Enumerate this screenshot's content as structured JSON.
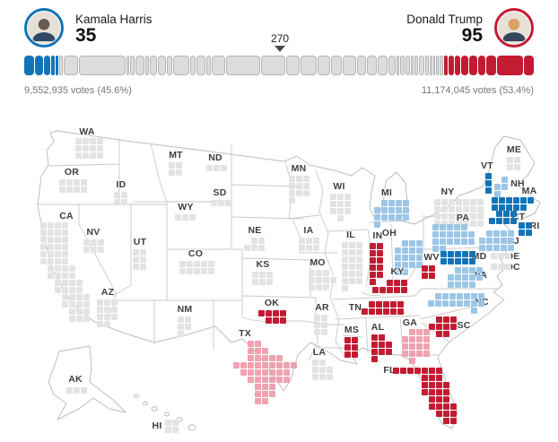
{
  "header": {
    "harris": {
      "name": "Kamala Harris",
      "ev": "35"
    },
    "trump": {
      "name": "Donald Trump",
      "ev": "95"
    },
    "marker": "270",
    "harris_votes": "9,552,935 votes (45.6%)",
    "trump_votes": "11,174,045 votes (53.4%)"
  },
  "colors": {
    "dem": "#1274b8",
    "dem_lean": "#9cc6e8",
    "gop": "#c21b32",
    "gop_lean": "#efa2b0",
    "none": "#e3e3e3",
    "bar_none_fill": "#dcdcdc",
    "bar_none_border": "#b5b5b5",
    "harris_ring": "#1274b8",
    "trump_ring": "#c21b32",
    "map_outline": "#c2c2c2"
  },
  "chart_data": {
    "type": "cartogram+bar",
    "total_electoral_votes": 538,
    "ev_to_win": 270,
    "candidates": [
      {
        "name": "Kamala Harris",
        "party": "dem",
        "electoral_votes": 35,
        "popular_votes": "9,552,935",
        "popular_pct": 45.6
      },
      {
        "name": "Donald Trump",
        "party": "gop",
        "electoral_votes": 95,
        "popular_votes": "11,174,045",
        "popular_pct": 53.4
      }
    ],
    "bar_segments": [
      {
        "state": "MA",
        "ev": 11,
        "party": "dem"
      },
      {
        "state": "MD",
        "ev": 10,
        "party": "dem"
      },
      {
        "state": "CT",
        "ev": 7,
        "party": "dem"
      },
      {
        "state": "RI",
        "ev": 4,
        "party": "dem"
      },
      {
        "state": "VT",
        "ev": 3,
        "party": "dem"
      },
      {
        "state": "NH",
        "ev": 4,
        "party": "none"
      },
      {
        "state": "OH",
        "ev": 17,
        "party": "none"
      },
      {
        "state": "CA",
        "ev": 54,
        "party": "none"
      },
      {
        "state": "ND",
        "ev": 3,
        "party": "none"
      },
      {
        "state": "IA",
        "ev": 6,
        "party": "none"
      },
      {
        "state": "WI",
        "ev": 10,
        "party": "none"
      },
      {
        "state": "ID",
        "ev": 4,
        "party": "none"
      },
      {
        "state": "OR",
        "ev": 8,
        "party": "none"
      },
      {
        "state": "MN",
        "ev": 10,
        "party": "none"
      },
      {
        "state": "KS",
        "ev": 6,
        "party": "none"
      },
      {
        "state": "IL",
        "ev": 19,
        "party": "none"
      },
      {
        "state": "NV",
        "ev": 6,
        "party": "none"
      },
      {
        "state": "MO",
        "ev": 10,
        "party": "none"
      },
      {
        "state": "NE",
        "ev": 5,
        "party": "none"
      },
      {
        "state": "NC",
        "ev": 16,
        "party": "none"
      },
      {
        "state": "TX",
        "ev": 40,
        "party": "none"
      },
      {
        "state": "NY",
        "ev": 28,
        "party": "none"
      },
      {
        "state": "MI",
        "ev": 15,
        "party": "none"
      },
      {
        "state": "PA",
        "ev": 19,
        "party": "none"
      },
      {
        "state": "NJ",
        "ev": 14,
        "party": "none"
      },
      {
        "state": "VA",
        "ev": 13,
        "party": "none"
      },
      {
        "state": "GA",
        "ev": 16,
        "party": "none"
      },
      {
        "state": "CO",
        "ev": 10,
        "party": "none"
      },
      {
        "state": "AZ",
        "ev": 11,
        "party": "none"
      },
      {
        "state": "WA",
        "ev": 12,
        "party": "none"
      },
      {
        "state": "LA",
        "ev": 8,
        "party": "none"
      },
      {
        "state": "SD",
        "ev": 3,
        "party": "none"
      },
      {
        "state": "NM",
        "ev": 5,
        "party": "none"
      },
      {
        "state": "UT",
        "ev": 6,
        "party": "none"
      },
      {
        "state": "AK",
        "ev": 3,
        "party": "none"
      },
      {
        "state": "ME",
        "ev": 4,
        "party": "none"
      },
      {
        "state": "AR",
        "ev": 6,
        "party": "none"
      },
      {
        "state": "HI",
        "ev": 4,
        "party": "none"
      },
      {
        "state": "WY",
        "ev": 3,
        "party": "none"
      },
      {
        "state": "DE",
        "ev": 3,
        "party": "none"
      },
      {
        "state": "DC",
        "ev": 3,
        "party": "none"
      },
      {
        "state": "MT",
        "ev": 4,
        "party": "none"
      },
      {
        "state": "WV",
        "ev": 4,
        "party": "gop"
      },
      {
        "state": "MS",
        "ev": 6,
        "party": "gop"
      },
      {
        "state": "OK",
        "ev": 7,
        "party": "gop"
      },
      {
        "state": "KY",
        "ev": 8,
        "party": "gop"
      },
      {
        "state": "AL",
        "ev": 9,
        "party": "gop"
      },
      {
        "state": "SC",
        "ev": 9,
        "party": "gop"
      },
      {
        "state": "IN",
        "ev": 11,
        "party": "gop"
      },
      {
        "state": "FL",
        "ev": 30,
        "party": "gop"
      },
      {
        "state": "TN",
        "ev": 11,
        "party": "gop"
      }
    ],
    "states": [
      {
        "abbr": "WA",
        "ev": 12,
        "status": "none",
        "label": [
          97,
          17
        ],
        "grid": [
          84,
          24
        ],
        "rows": [
          "####",
          "####",
          "####"
        ]
      },
      {
        "abbr": "OR",
        "ev": 8,
        "status": "none",
        "label": [
          80,
          62
        ],
        "grid": [
          66,
          70
        ],
        "rows": [
          "####",
          "####"
        ]
      },
      {
        "abbr": "CA",
        "ev": 54,
        "status": "none",
        "label": [
          74,
          111
        ],
        "grid": [
          45,
          118
        ],
        "rows": [
          "####...",
          "####...",
          "####...",
          "####...",
          "####...",
          "####...",
          ".####..",
          ".####..",
          "..####.",
          "..####.",
          "...####",
          "...####",
          "....###",
          "....###"
        ]
      },
      {
        "abbr": "NV",
        "ev": 6,
        "status": "none",
        "label": [
          104,
          129
        ],
        "grid": [
          93,
          137
        ],
        "rows": [
          "###",
          "###"
        ]
      },
      {
        "abbr": "ID",
        "ev": 4,
        "status": "none",
        "label": [
          135,
          76
        ],
        "grid": [
          127,
          84
        ],
        "rows": [
          "##",
          "##"
        ]
      },
      {
        "abbr": "MT",
        "ev": 4,
        "status": "none",
        "label": [
          196,
          43
        ],
        "grid": [
          188,
          51
        ],
        "rows": [
          "##",
          "##"
        ]
      },
      {
        "abbr": "WY",
        "ev": 3,
        "status": "none",
        "label": [
          207,
          101
        ],
        "grid": [
          195,
          109
        ],
        "rows": [
          "###"
        ]
      },
      {
        "abbr": "UT",
        "ev": 6,
        "status": "none",
        "label": [
          156,
          140
        ],
        "grid": [
          148,
          148
        ],
        "rows": [
          "##",
          "##",
          "##"
        ]
      },
      {
        "abbr": "CO",
        "ev": 10,
        "status": "none",
        "label": [
          218,
          153
        ],
        "grid": [
          200,
          161
        ],
        "rows": [
          "#####",
          "#####"
        ]
      },
      {
        "abbr": "AZ",
        "ev": 11,
        "status": "none",
        "label": [
          120,
          196
        ],
        "grid": [
          108,
          204
        ],
        "rows": [
          "###",
          "###",
          "###",
          "##."
        ]
      },
      {
        "abbr": "NM",
        "ev": 5,
        "status": "none",
        "label": [
          206,
          215
        ],
        "grid": [
          198,
          223
        ],
        "rows": [
          "##",
          "##",
          "#."
        ]
      },
      {
        "abbr": "ND",
        "ev": 3,
        "status": "none",
        "label": [
          240,
          46
        ],
        "grid": [
          230,
          54
        ],
        "rows": [
          "###"
        ]
      },
      {
        "abbr": "SD",
        "ev": 3,
        "status": "none",
        "label": [
          245,
          85
        ],
        "grid": [
          235,
          93
        ],
        "rows": [
          "###"
        ]
      },
      {
        "abbr": "NE",
        "ev": 5,
        "status": "none",
        "label": [
          284,
          127
        ],
        "grid": [
          272,
          135
        ],
        "rows": [
          ".##",
          "###"
        ]
      },
      {
        "abbr": "KS",
        "ev": 6,
        "status": "none",
        "label": [
          293,
          165
        ],
        "grid": [
          281,
          173
        ],
        "rows": [
          "###",
          "###"
        ]
      },
      {
        "abbr": "OK",
        "ev": 7,
        "status": "gop",
        "label": [
          303,
          208
        ],
        "grid": [
          288,
          216
        ],
        "rows": [
          "####",
          ".###"
        ]
      },
      {
        "abbr": "TX",
        "ev": 40,
        "status": "gop-lean",
        "label": [
          273,
          242
        ],
        "grid": [
          260,
          250
        ],
        "rows": [
          "..##.....",
          "..###....",
          "..#####..",
          "#########",
          ".#######.",
          "..######.",
          "...###...",
          "...###...",
          "...##...."
        ]
      },
      {
        "abbr": "MN",
        "ev": 10,
        "status": "none",
        "label": [
          333,
          58
        ],
        "grid": [
          322,
          66
        ],
        "rows": [
          "###",
          "###",
          "###",
          "#.."
        ]
      },
      {
        "abbr": "IA",
        "ev": 6,
        "status": "none",
        "label": [
          344,
          127
        ],
        "grid": [
          333,
          135
        ],
        "rows": [
          "###",
          "###"
        ]
      },
      {
        "abbr": "MO",
        "ev": 10,
        "status": "none",
        "label": [
          354,
          163
        ],
        "grid": [
          344,
          171
        ],
        "rows": [
          "###.",
          "####",
          "###."
        ]
      },
      {
        "abbr": "AR",
        "ev": 6,
        "status": "none",
        "label": [
          359,
          213
        ],
        "grid": [
          350,
          221
        ],
        "rows": [
          "##",
          "##",
          "##"
        ]
      },
      {
        "abbr": "LA",
        "ev": 8,
        "status": "none",
        "label": [
          356,
          263
        ],
        "grid": [
          348,
          271
        ],
        "rows": [
          "##.",
          "###",
          "###"
        ]
      },
      {
        "abbr": "WI",
        "ev": 10,
        "status": "none",
        "label": [
          378,
          78
        ],
        "grid": [
          368,
          86
        ],
        "rows": [
          "###",
          "###",
          "###",
          ".#."
        ]
      },
      {
        "abbr": "IL",
        "ev": 19,
        "status": "none",
        "label": [
          391,
          132
        ],
        "grid": [
          381,
          140
        ],
        "rows": [
          "###",
          "###",
          "###",
          "###",
          "###",
          "###",
          "#.."
        ]
      },
      {
        "abbr": "MI",
        "ev": 15,
        "status": "dem-lean",
        "label": [
          431,
          85
        ],
        "grid": [
          417,
          93
        ],
        "rows": [
          ".####",
          "#####",
          "#####",
          "#...."
        ]
      },
      {
        "abbr": "IN",
        "ev": 11,
        "status": "gop",
        "label": [
          421,
          133
        ],
        "grid": [
          412,
          141
        ],
        "rows": [
          "##",
          "##",
          "##",
          "##",
          "##",
          "#."
        ]
      },
      {
        "abbr": "OH",
        "ev": 17,
        "status": "dem-lean",
        "label": [
          434,
          130
        ],
        "grid": [
          440,
          138
        ],
        "rows": [
          ".###",
          "####",
          "####",
          "####",
          "##.."
        ]
      },
      {
        "abbr": "KY",
        "ev": 8,
        "status": "gop",
        "label": [
          443,
          173
        ],
        "grid": [
          415,
          182
        ],
        "rows": [
          "..###",
          "#####"
        ]
      },
      {
        "abbr": "TN",
        "ev": 11,
        "status": "gop",
        "label": [
          396,
          213
        ],
        "grid": [
          403,
          206
        ],
        "rows": [
          ".#####",
          "######"
        ]
      },
      {
        "abbr": "WV",
        "ev": 4,
        "status": "gop",
        "label": [
          481,
          157
        ],
        "grid": [
          470,
          166
        ],
        "rows": [
          "##",
          "##"
        ]
      },
      {
        "abbr": "VA",
        "ev": 13,
        "status": "dem-lean",
        "label": [
          536,
          177
        ],
        "grid": [
          499,
          168
        ],
        "rows": [
          ".####",
          "#####",
          "####."
        ]
      },
      {
        "abbr": "NC",
        "ev": 16,
        "status": "dem-lean",
        "label": [
          537,
          207
        ],
        "grid": [
          477,
          197
        ],
        "rows": [
          ".#######",
          "########",
          "......#."
        ]
      },
      {
        "abbr": "SC",
        "ev": 9,
        "status": "gop",
        "label": [
          517,
          233
        ],
        "grid": [
          478,
          223
        ],
        "rows": [
          ".###",
          "####",
          ".##."
        ]
      },
      {
        "abbr": "GA",
        "ev": 16,
        "status": "gop-lean",
        "label": [
          457,
          230
        ],
        "grid": [
          448,
          237
        ],
        "rows": [
          ".###",
          "####",
          "####",
          "####",
          ".#.."
        ]
      },
      {
        "abbr": "AL",
        "ev": 9,
        "status": "gop",
        "label": [
          421,
          235
        ],
        "grid": [
          414,
          243
        ],
        "rows": [
          "##.",
          "###",
          "###",
          "#.."
        ]
      },
      {
        "abbr": "MS",
        "ev": 6,
        "status": "gop",
        "label": [
          392,
          238
        ],
        "grid": [
          384,
          246
        ],
        "rows": [
          "##",
          "##",
          "##"
        ]
      },
      {
        "abbr": "FL",
        "ev": 30,
        "status": "gop",
        "label": [
          434,
          283
        ],
        "grid": [
          438,
          280
        ],
        "rows": [
          "#######..",
          "....###..",
          "....####.",
          "....####.",
          ".....###.",
          ".....####",
          "......###",
          ".......##"
        ]
      },
      {
        "abbr": "ME",
        "ev": 4,
        "status": "none",
        "label": [
          573,
          37
        ],
        "grid": [
          565,
          45
        ],
        "rows": [
          "##",
          "##"
        ]
      },
      {
        "abbr": "VT",
        "ev": 3,
        "status": "dem",
        "label": [
          543,
          55
        ],
        "grid": [
          541,
          63
        ],
        "rows": [
          "#",
          "#",
          "#"
        ]
      },
      {
        "abbr": "NH",
        "ev": 4,
        "status": "dem-lean",
        "label": [
          577,
          75
        ],
        "grid": [
          551,
          67
        ],
        "rows": [
          ".#",
          "##",
          "#."
        ]
      },
      {
        "abbr": "MA",
        "ev": 11,
        "status": "dem",
        "label": [
          590,
          83
        ],
        "grid": [
          548,
          90
        ],
        "rows": [
          "######",
          "#####."
        ]
      },
      {
        "abbr": "CT",
        "ev": 7,
        "status": "dem",
        "label": [
          578,
          112
        ],
        "grid": [
          545,
          105
        ],
        "rows": [
          ".###",
          "####"
        ]
      },
      {
        "abbr": "RI",
        "ev": 4,
        "status": "dem",
        "label": [
          596,
          122
        ],
        "grid": [
          578,
          118
        ],
        "rows": [
          "##",
          "##"
        ]
      },
      {
        "abbr": "NY",
        "ev": 28,
        "status": "none",
        "label": [
          499,
          84
        ],
        "grid": [
          484,
          92
        ],
        "rows": [
          "#######",
          "#######",
          "#######",
          "#######"
        ]
      },
      {
        "abbr": "PA",
        "ev": 19,
        "status": "dem-lean",
        "label": [
          516,
          113
        ],
        "grid": [
          482,
          120
        ],
        "rows": [
          "#####.",
          "######",
          "######",
          "##...."
        ]
      },
      {
        "abbr": "NJ",
        "ev": 14,
        "status": "dem-lean",
        "label": [
          572,
          139
        ],
        "grid": [
          534,
          127
        ],
        "rows": [
          ".####",
          "#####",
          "#####"
        ]
      },
      {
        "abbr": "MD",
        "ev": 10,
        "status": "dem",
        "label": [
          534,
          156
        ],
        "grid": [
          491,
          150
        ],
        "rows": [
          "#####",
          "#####"
        ]
      },
      {
        "abbr": "DE",
        "ev": 3,
        "status": "none",
        "label": [
          572,
          156
        ],
        "grid": [
          547,
          152
        ],
        "rows": [
          "###"
        ]
      },
      {
        "abbr": "DC",
        "ev": 3,
        "status": "none",
        "label": [
          572,
          168
        ],
        "grid": [
          547,
          164
        ],
        "rows": [
          "###"
        ]
      },
      {
        "abbr": "AK",
        "ev": 3,
        "status": "none",
        "label": [
          84,
          293
        ],
        "grid": [
          74,
          302
        ],
        "rows": [
          "###"
        ]
      },
      {
        "abbr": "HI",
        "ev": 4,
        "status": "none",
        "label": [
          175,
          345
        ],
        "grid": [
          184,
          338
        ],
        "rows": [
          "##",
          "##"
        ]
      }
    ]
  }
}
